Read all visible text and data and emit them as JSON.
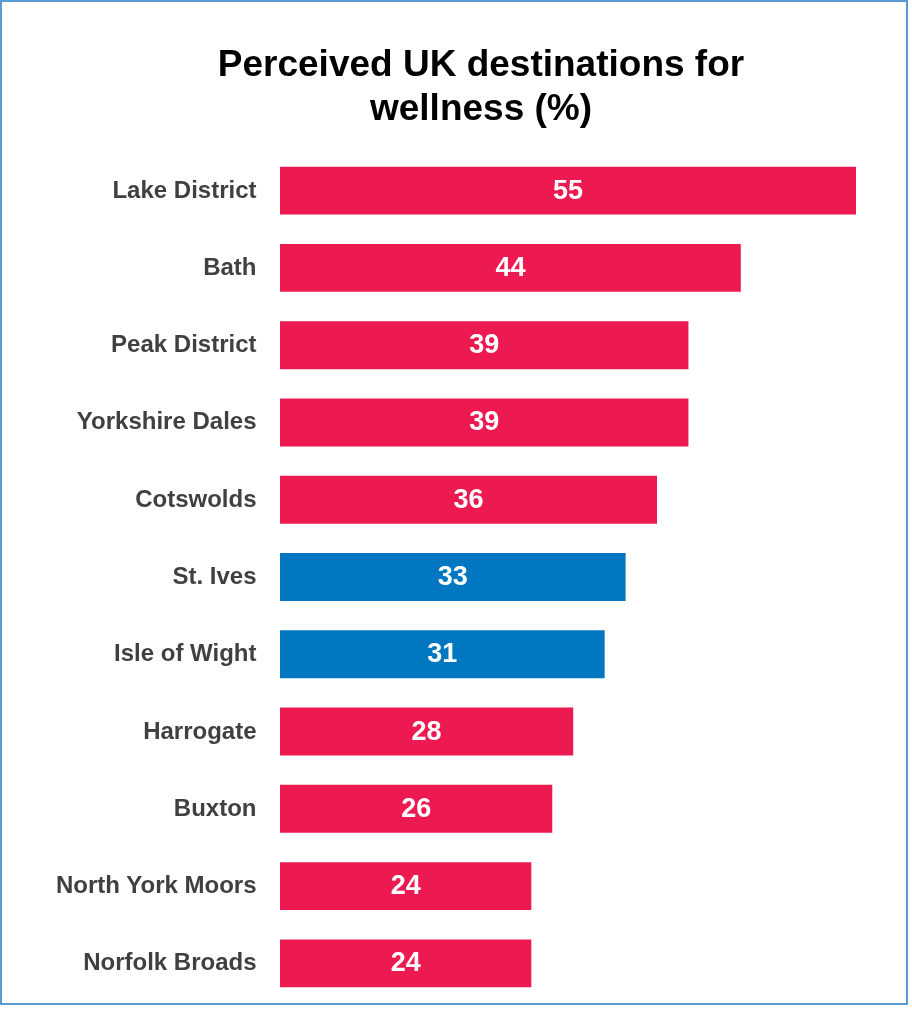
{
  "chart_data": {
    "type": "bar",
    "orientation": "horizontal",
    "title": "Perceived UK destinations for wellness (%)",
    "categories": [
      "Lake District",
      "Bath",
      "Peak District",
      "Yorkshire Dales",
      "Cotswolds",
      "St. Ives",
      "Isle of Wight",
      "Harrogate",
      "Buxton",
      "North York Moors",
      "Norfolk Broads"
    ],
    "values": [
      55,
      44,
      39,
      39,
      36,
      33,
      31,
      28,
      26,
      24,
      24
    ],
    "colors": [
      "#ed1a52",
      "#ed1a52",
      "#ed1a52",
      "#ed1a52",
      "#ed1a52",
      "#0077c0",
      "#0077c0",
      "#ed1a52",
      "#ed1a52",
      "#ed1a52",
      "#ed1a52"
    ],
    "data_labels": true
  }
}
